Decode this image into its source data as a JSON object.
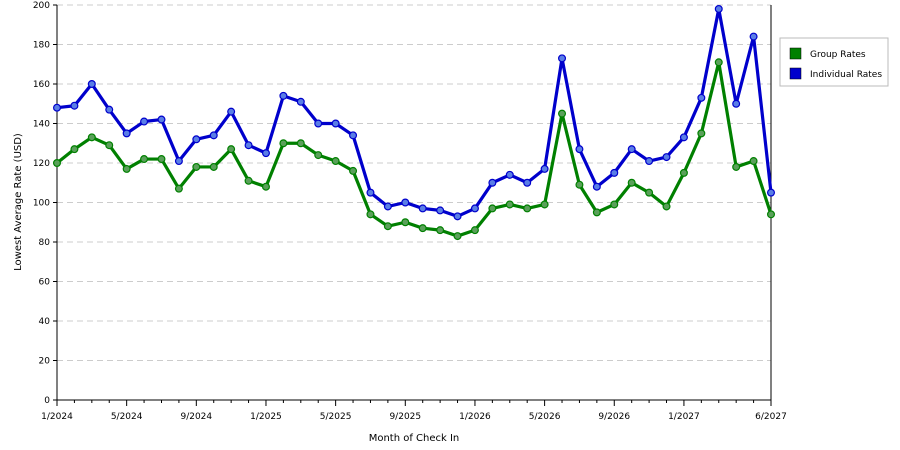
{
  "chart_data": {
    "type": "line",
    "title": "",
    "xlabel": "Month of Check In",
    "ylabel": "Lowest Average Rate (USD)",
    "ylim": [
      0,
      200
    ],
    "yticks": [
      0,
      20,
      40,
      60,
      80,
      100,
      120,
      140,
      160,
      180,
      200
    ],
    "x": [
      "1/2024",
      "2/2024",
      "3/2024",
      "4/2024",
      "5/2024",
      "6/2024",
      "7/2024",
      "8/2024",
      "9/2024",
      "10/2024",
      "11/2024",
      "12/2024",
      "1/2025",
      "2/2025",
      "3/2025",
      "4/2025",
      "5/2025",
      "6/2025",
      "7/2025",
      "8/2025",
      "9/2025",
      "10/2025",
      "11/2025",
      "12/2025",
      "1/2026",
      "2/2026",
      "3/2026",
      "4/2026",
      "5/2026",
      "6/2026",
      "7/2026",
      "8/2026",
      "9/2026",
      "10/2026",
      "11/2026",
      "12/2026",
      "1/2027",
      "2/2027",
      "3/2027",
      "4/2027",
      "5/2027",
      "6/2027"
    ],
    "xtick_labels": [
      "1/2024",
      "5/2024",
      "9/2024",
      "1/2025",
      "5/2025",
      "9/2025",
      "1/2026",
      "5/2026",
      "9/2026",
      "1/2027",
      "6/2027"
    ],
    "grid": true,
    "legend_position": "right",
    "series": [
      {
        "name": "Group Rates",
        "color": "#008000",
        "values": [
          120,
          127,
          133,
          129,
          117,
          122,
          122,
          107,
          118,
          118,
          127,
          111,
          108,
          130,
          130,
          124,
          121,
          116,
          94,
          88,
          90,
          87,
          86,
          83,
          86,
          97,
          99,
          97,
          99,
          145,
          109,
          95,
          99,
          110,
          105,
          98,
          115,
          135,
          171,
          118,
          121,
          94
        ]
      },
      {
        "name": "Individual Rates",
        "color": "#0000CC",
        "values": [
          148,
          149,
          160,
          147,
          135,
          141,
          142,
          121,
          132,
          134,
          146,
          129,
          125,
          154,
          151,
          140,
          140,
          134,
          105,
          98,
          100,
          97,
          96,
          93,
          97,
          110,
          114,
          110,
          117,
          173,
          127,
          108,
          115,
          127,
          121,
          123,
          133,
          153,
          198,
          150,
          184,
          105
        ]
      }
    ]
  }
}
